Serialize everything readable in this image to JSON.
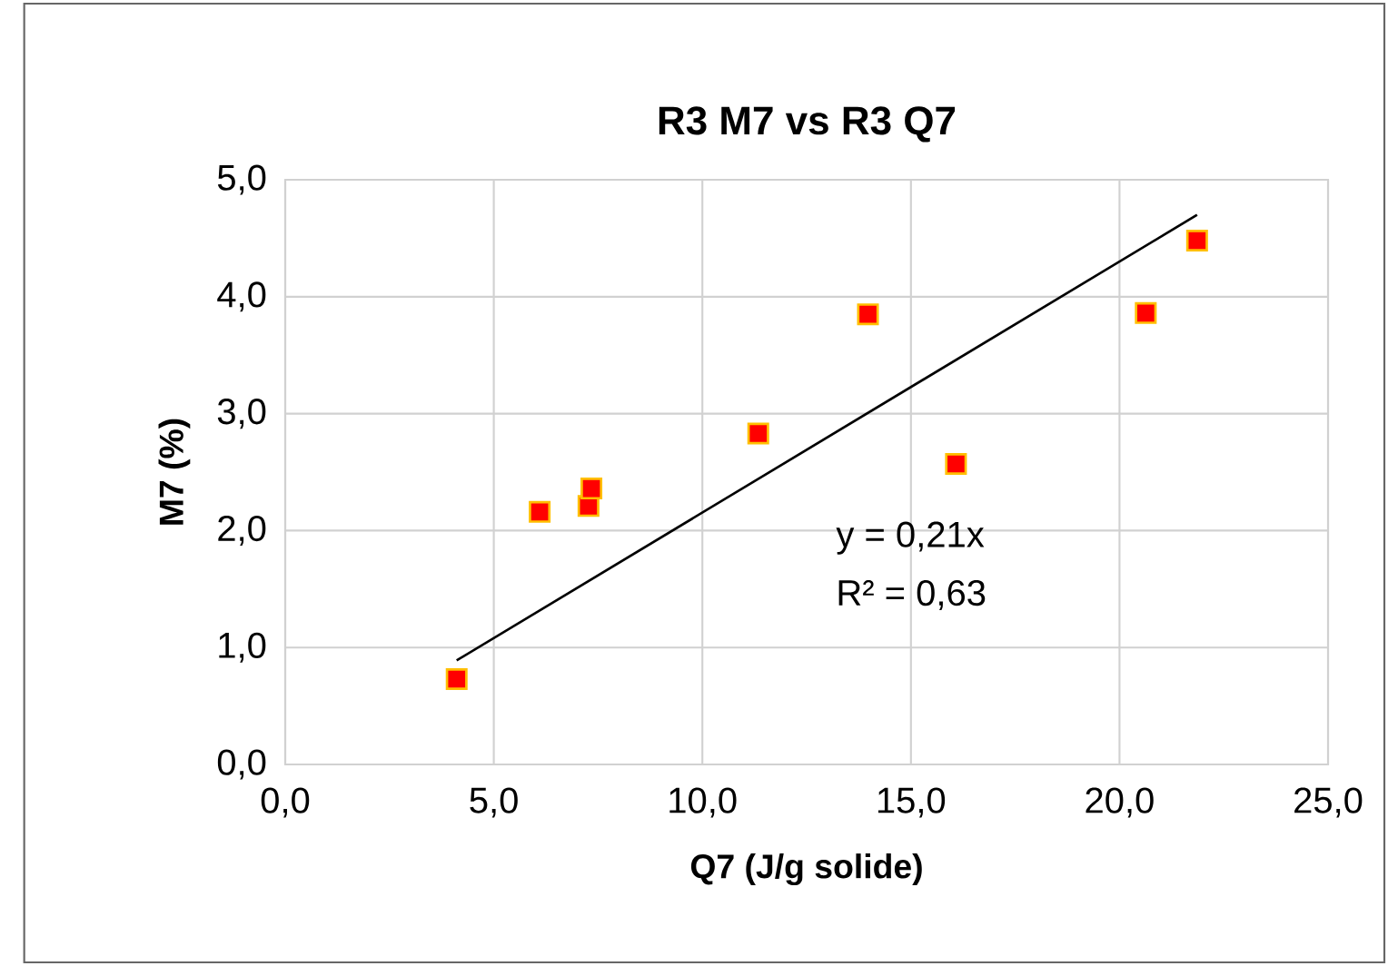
{
  "chart_data": {
    "type": "scatter",
    "title": "R3 M7 vs R3 Q7",
    "xlabel": "Q7 (J/g solide)",
    "ylabel": "M7 (%)",
    "series": [
      {
        "color": "#ff0000",
        "marker": "square",
        "x": [
          4.11,
          6.1,
          7.27,
          7.34,
          11.34,
          13.97,
          16.08,
          20.63,
          21.86
        ],
        "values": [
          0.73,
          2.16,
          2.21,
          2.36,
          2.83,
          3.85,
          2.57,
          3.86,
          4.48
        ]
      },
      {
        "type": "line",
        "color": "#000000",
        "x": [
          4.11,
          21.86
        ],
        "values": [
          0.89,
          4.7
        ]
      }
    ],
    "xlim": [
      0,
      25
    ],
    "ylim": [
      0,
      5
    ],
    "xticks": [
      {
        "value": 0,
        "label": "0,0"
      },
      {
        "value": 5,
        "label": "5,0"
      },
      {
        "value": 10,
        "label": "10,0"
      },
      {
        "value": 15,
        "label": "15,0"
      },
      {
        "value": 20,
        "label": "20,0"
      },
      {
        "value": 25,
        "label": "25,0"
      }
    ],
    "yticks": [
      {
        "value": 0,
        "label": "0,0"
      },
      {
        "value": 1,
        "label": "1,0"
      },
      {
        "value": 2,
        "label": "2,0"
      },
      {
        "value": 3,
        "label": "3,0"
      },
      {
        "value": 4,
        "label": "4,0"
      },
      {
        "value": 5,
        "label": "5,0"
      }
    ],
    "grid": true,
    "annotations": [
      "y = 0,21x",
      "R² = 0,63"
    ]
  }
}
